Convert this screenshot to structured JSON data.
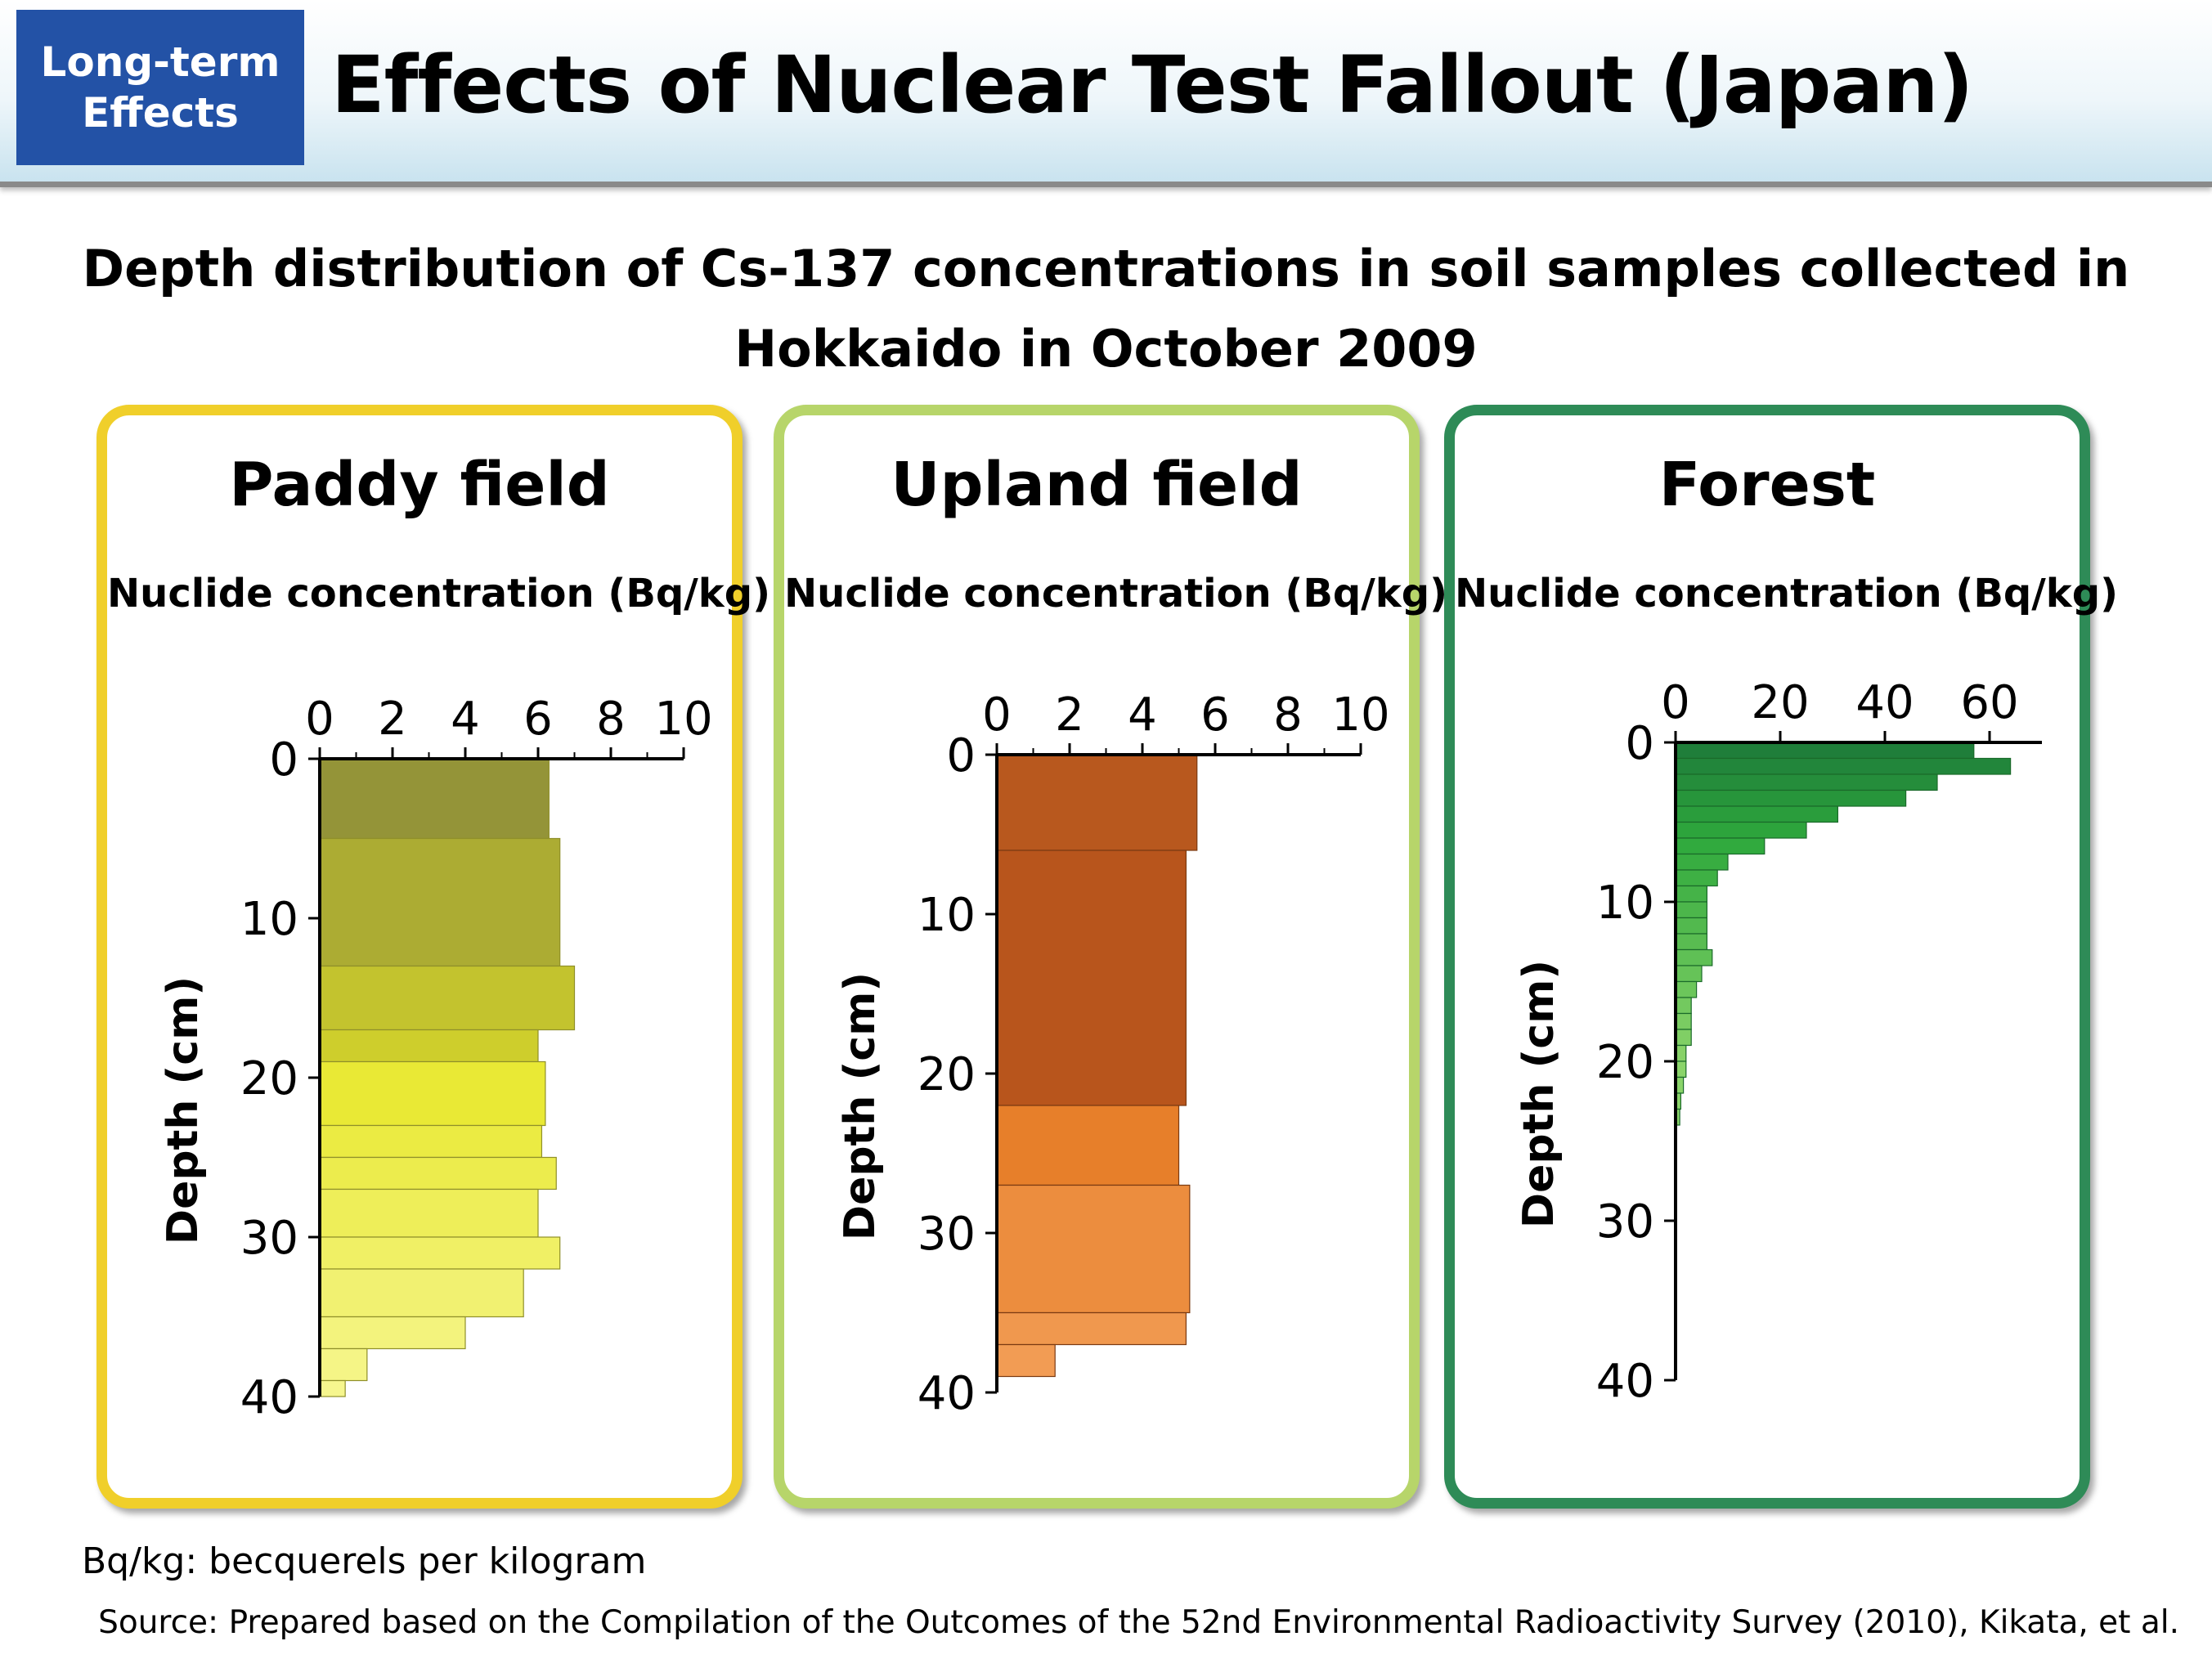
{
  "header": {
    "badge_line1": "Long-term",
    "badge_line2": "Effects",
    "title": "Effects of Nuclear Test Fallout (Japan)"
  },
  "subtitle_line1": "Depth distribution of Cs-137 concentrations in soil samples collected in",
  "subtitle_line2": "Hokkaido in October 2009",
  "colors": {
    "paddy_border": "#f0cf2a",
    "upland_border": "#b7d56a",
    "forest_border": "#2e8b57"
  },
  "chart_data": [
    {
      "type": "bar",
      "orientation": "horizontal",
      "title": "Paddy field",
      "xlabel": "Nuclide concentration (Bq/kg)",
      "ylabel": "Depth (cm)",
      "xlim": [
        0,
        10
      ],
      "ylim": [
        0,
        40
      ],
      "x_ticks": [
        "0",
        "2",
        "4",
        "6",
        "8",
        "10"
      ],
      "y_ticks": [
        "0",
        "10",
        "20",
        "30",
        "40"
      ],
      "depth_from": [
        0,
        5,
        13,
        17,
        19,
        23,
        25,
        27,
        30,
        32,
        35,
        37,
        39
      ],
      "depth_to": [
        5,
        13,
        17,
        19,
        23,
        25,
        27,
        30,
        32,
        35,
        37,
        39,
        40
      ],
      "values": [
        6.3,
        6.6,
        7.0,
        6.0,
        6.2,
        6.1,
        6.5,
        6.0,
        6.6,
        5.6,
        4.0,
        1.3,
        0.7
      ]
    },
    {
      "type": "bar",
      "orientation": "horizontal",
      "title": "Upland field",
      "xlabel": "Nuclide concentration (Bq/kg)",
      "ylabel": "Depth (cm)",
      "xlim": [
        0,
        10
      ],
      "ylim": [
        0,
        40
      ],
      "x_ticks": [
        "0",
        "2",
        "4",
        "6",
        "8",
        "10"
      ],
      "y_ticks": [
        "0",
        "10",
        "20",
        "30",
        "40"
      ],
      "depth_from": [
        0,
        6,
        22,
        27,
        35,
        37
      ],
      "depth_to": [
        6,
        22,
        27,
        35,
        37,
        39
      ],
      "values": [
        5.5,
        5.2,
        5.0,
        5.3,
        5.2,
        1.6
      ]
    },
    {
      "type": "bar",
      "orientation": "horizontal",
      "title": "Forest",
      "xlabel": "Nuclide concentration (Bq/kg)",
      "ylabel": "Depth (cm)",
      "xlim": [
        0,
        70
      ],
      "ylim": [
        0,
        40
      ],
      "x_ticks": [
        "0",
        "20",
        "40",
        "60"
      ],
      "y_ticks": [
        "0",
        "10",
        "20",
        "30",
        "40"
      ],
      "depth_from": [
        0,
        1,
        2,
        3,
        4,
        5,
        6,
        7,
        8,
        9,
        10,
        11,
        12,
        13,
        14,
        15,
        16,
        17,
        18,
        19,
        20,
        21,
        22,
        23
      ],
      "depth_to": [
        1,
        2,
        3,
        4,
        5,
        6,
        7,
        8,
        9,
        10,
        11,
        12,
        13,
        14,
        15,
        16,
        17,
        18,
        19,
        20,
        21,
        22,
        23,
        24
      ],
      "values": [
        57,
        64,
        50,
        44,
        31,
        25,
        17,
        10,
        8,
        6,
        6,
        6,
        6,
        7,
        5,
        4,
        3,
        3,
        3,
        2,
        2,
        1.5,
        1,
        0.8
      ]
    }
  ],
  "footnote": "Bq/kg: becquerels per kilogram",
  "source": "Source: Prepared based on the Compilation of the Outcomes of the 52nd Environmental Radioactivity Survey (2010), Kikata, et al."
}
